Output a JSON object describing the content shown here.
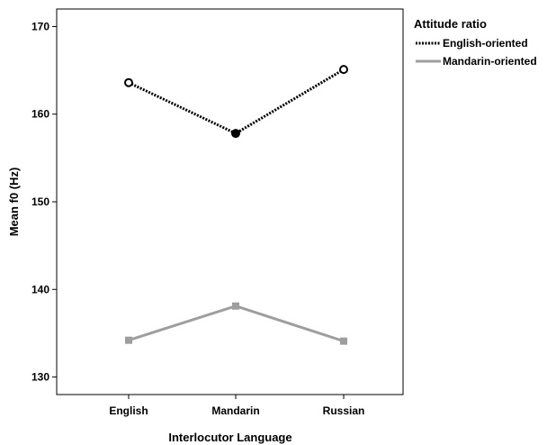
{
  "chart_data": {
    "type": "line",
    "xlabel": "Interlocutor Language",
    "ylabel": "Mean f0 (Hz)",
    "categories": [
      "English",
      "Mandarin",
      "Russian"
    ],
    "ylim": [
      128,
      172
    ],
    "yticks": [
      130,
      140,
      150,
      160,
      170
    ],
    "grid": false,
    "legend": {
      "title": "Attitude ratio",
      "placement": "right"
    },
    "series": [
      {
        "name": "English-oriented",
        "values": [
          163.6,
          157.8,
          165.1
        ],
        "color": "#000000",
        "line_style": "dotted",
        "marker": "circle"
      },
      {
        "name": "Mandarin-oriented",
        "values": [
          134.2,
          138.1,
          134.1
        ],
        "color": "#9e9e9e",
        "line_style": "solid",
        "marker": "square"
      }
    ]
  }
}
